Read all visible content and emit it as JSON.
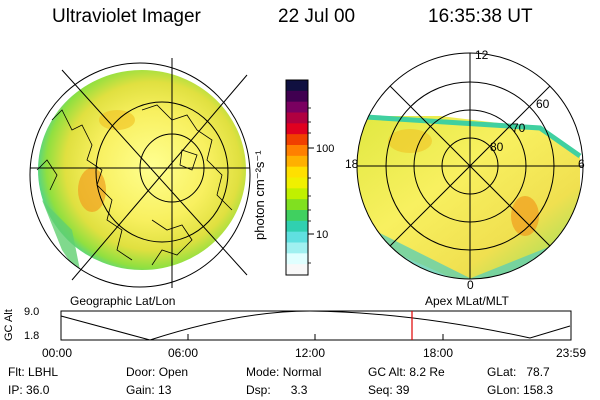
{
  "header": {
    "title": "Ultraviolet Imager",
    "date": "22 Jul 00",
    "time": "16:35:38 UT"
  },
  "colorbar": {
    "unit_label": "photon cm⁻²s⁻¹",
    "ticks": [
      "100",
      "10"
    ],
    "colors": [
      "#101040",
      "#400050",
      "#7a0060",
      "#b00040",
      "#e00020",
      "#f04000",
      "#ff8000",
      "#ffb000",
      "#ffe000",
      "#f0f000",
      "#c0f000",
      "#80e020",
      "#40d060",
      "#30d0b0",
      "#60e0e0",
      "#a0f0f0",
      "#e0ffff",
      "#f8f8f8"
    ]
  },
  "left_map": {
    "caption": "Geographic Lat/Lon"
  },
  "right_map": {
    "caption": "Apex MLat/MLT",
    "mlt_labels": {
      "top": "12",
      "left": "18",
      "right": "6",
      "bottom": "0"
    },
    "lat_labels": [
      "60",
      "70",
      "80"
    ]
  },
  "altitude_plot": {
    "ylabel": "GC Alt",
    "y_ticks": [
      "9.0",
      "1.8"
    ],
    "x_ticks": [
      "00:00",
      "06:00",
      "12:00",
      "18:00",
      "23:59"
    ],
    "marker_color": "#e00000"
  },
  "info": {
    "flt_label": "Flt:",
    "flt_value": "LBHL",
    "ip_label": "IP:",
    "ip_value": "36.0",
    "door_label": "Door:",
    "door_value": "Open",
    "gain_label": "Gain:",
    "gain_value": "13",
    "mode_label": "Mode:",
    "mode_value": "Normal",
    "dsp_label": "Dsp:",
    "dsp_value": "3.3",
    "gcalt_label": "GC Alt:",
    "gcalt_value": "8.2 Re",
    "seq_label": "Seq:",
    "seq_value": "39",
    "glat_label": "GLat:",
    "glat_value": "78.7",
    "glon_label": "GLon:",
    "glon_value": "158.3"
  }
}
